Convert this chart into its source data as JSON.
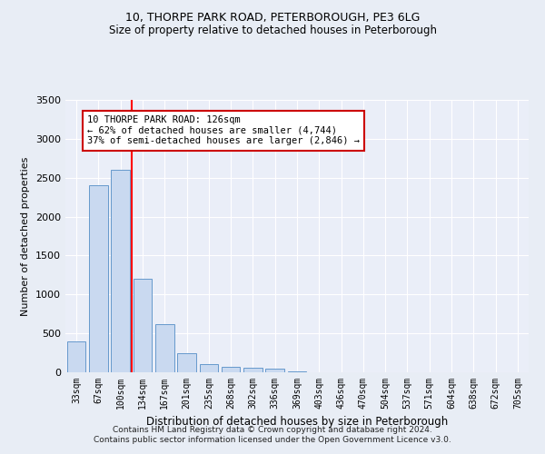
{
  "title1": "10, THORPE PARK ROAD, PETERBOROUGH, PE3 6LG",
  "title2": "Size of property relative to detached houses in Peterborough",
  "xlabel": "Distribution of detached houses by size in Peterborough",
  "ylabel": "Number of detached properties",
  "categories": [
    "33sqm",
    "67sqm",
    "100sqm",
    "134sqm",
    "167sqm",
    "201sqm",
    "235sqm",
    "268sqm",
    "302sqm",
    "336sqm",
    "369sqm",
    "403sqm",
    "436sqm",
    "470sqm",
    "504sqm",
    "537sqm",
    "571sqm",
    "604sqm",
    "638sqm",
    "672sqm",
    "705sqm"
  ],
  "values": [
    400,
    2400,
    2600,
    1200,
    620,
    240,
    100,
    70,
    60,
    50,
    10,
    5,
    5,
    5,
    5,
    5,
    5,
    5,
    5,
    5,
    5
  ],
  "bar_color": "#c9d9f0",
  "bar_edgecolor": "#6699cc",
  "redline_index": 2.5,
  "ylim": [
    0,
    3500
  ],
  "yticks": [
    0,
    500,
    1000,
    1500,
    2000,
    2500,
    3000,
    3500
  ],
  "annotation_text": "10 THORPE PARK ROAD: 126sqm\n← 62% of detached houses are smaller (4,744)\n37% of semi-detached houses are larger (2,846) →",
  "annotation_box_color": "#ffffff",
  "annotation_box_edgecolor": "#cc0000",
  "footer1": "Contains HM Land Registry data © Crown copyright and database right 2024.",
  "footer2": "Contains public sector information licensed under the Open Government Licence v3.0.",
  "background_color": "#e8edf5",
  "plot_bg_color": "#eaeef8",
  "title_fontsize": 9,
  "subtitle_fontsize": 8.5
}
